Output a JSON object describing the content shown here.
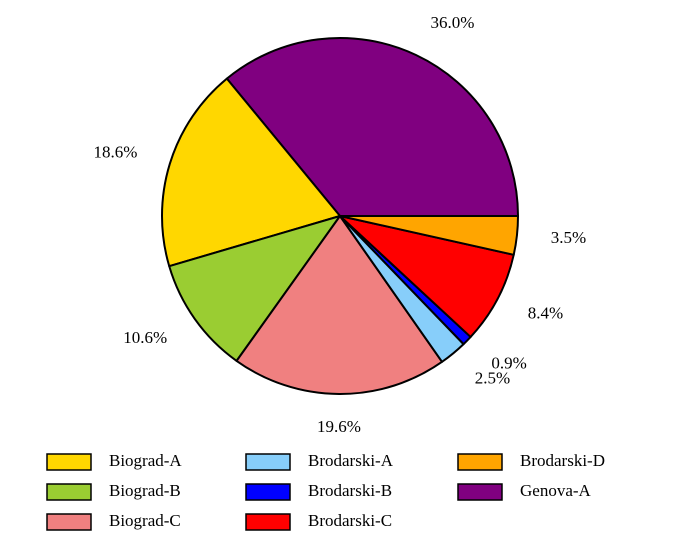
{
  "chart_data": {
    "type": "pie",
    "title": "",
    "start_angle_deg": 0,
    "direction": "counterclockwise",
    "legend_position": "bottom",
    "legend_columns": 3,
    "slices": [
      {
        "name": "Genova-A",
        "value": 36.0,
        "label": "36.0%",
        "color": "#800080"
      },
      {
        "name": "Biograd-A",
        "value": 18.6,
        "label": "18.6%",
        "color": "#FFD700"
      },
      {
        "name": "Biograd-B",
        "value": 10.6,
        "label": "10.6%",
        "color": "#9ACD32"
      },
      {
        "name": "Biograd-C",
        "value": 19.6,
        "label": "19.6%",
        "color": "#F08080"
      },
      {
        "name": "Brodarski-A",
        "value": 2.5,
        "label": "2.5%",
        "color": "#87CEFA"
      },
      {
        "name": "Brodarski-B",
        "value": 0.9,
        "label": "0.9%",
        "color": "#0000FF"
      },
      {
        "name": "Brodarski-C",
        "value": 8.4,
        "label": "8.4%",
        "color": "#FF0000"
      },
      {
        "name": "Brodarski-D",
        "value": 3.5,
        "label": "3.5%",
        "color": "#FFA500"
      }
    ],
    "legend": [
      {
        "name": "Biograd-A",
        "color": "#FFD700"
      },
      {
        "name": "Biograd-B",
        "color": "#9ACD32"
      },
      {
        "name": "Biograd-C",
        "color": "#F08080"
      },
      {
        "name": "Brodarski-A",
        "color": "#87CEFA"
      },
      {
        "name": "Brodarski-B",
        "color": "#0000FF"
      },
      {
        "name": "Brodarski-C",
        "color": "#FF0000"
      },
      {
        "name": "Brodarski-D",
        "color": "#FFA500"
      },
      {
        "name": "Genova-A",
        "color": "#800080"
      }
    ]
  }
}
